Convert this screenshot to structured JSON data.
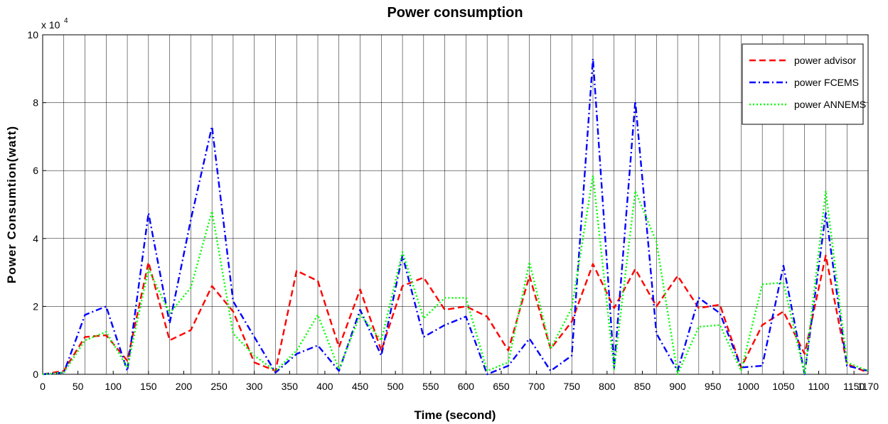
{
  "chart_data": {
    "type": "line",
    "title": "Power consumption",
    "xlabel": "Time (second)",
    "ylabel": "Power Consumtion(watt)",
    "y_exponent_label": "x 10",
    "y_exponent_power": "4",
    "xlim": [
      0,
      1170
    ],
    "ylim": [
      0,
      10
    ],
    "x_ticks": [
      "0",
      "50",
      "100",
      "150",
      "200",
      "250",
      "300",
      "350",
      "400",
      "450",
      "500",
      "550",
      "600",
      "650",
      "700",
      "750",
      "800",
      "850",
      "900",
      "950",
      "1000",
      "1050",
      "1100",
      "1150",
      "1170"
    ],
    "y_ticks": [
      "0",
      "2",
      "4",
      "6",
      "8",
      "10"
    ],
    "grid": true,
    "legend_position": "top-right",
    "x": [
      0,
      30,
      60,
      90,
      120,
      150,
      180,
      210,
      240,
      270,
      300,
      330,
      360,
      390,
      420,
      450,
      480,
      510,
      540,
      570,
      600,
      630,
      660,
      690,
      720,
      750,
      780,
      810,
      840,
      870,
      900,
      930,
      960,
      990,
      1020,
      1050,
      1080,
      1110,
      1140,
      1170
    ],
    "series": [
      {
        "name": "power advisor",
        "color": "#ff0000",
        "dash": "dashed",
        "values": [
          0,
          0.1,
          1.1,
          1.15,
          0.4,
          3.3,
          1.0,
          1.3,
          2.6,
          1.85,
          0.35,
          0.1,
          3.05,
          2.75,
          0.8,
          2.5,
          0.7,
          2.6,
          2.85,
          1.9,
          2.0,
          1.7,
          0.7,
          2.9,
          0.75,
          1.55,
          3.25,
          1.95,
          3.1,
          2.0,
          2.9,
          1.95,
          2.05,
          0.2,
          1.45,
          1.85,
          0.6,
          3.5,
          0.3,
          0.05
        ]
      },
      {
        "name": "power FCEMS",
        "color": "#0000ff",
        "dash": "dash-dot",
        "values": [
          0,
          0.05,
          1.75,
          2.0,
          0.1,
          4.75,
          1.5,
          4.55,
          7.3,
          2.15,
          1.1,
          0.05,
          0.6,
          0.85,
          0.1,
          1.9,
          0.55,
          3.5,
          1.1,
          1.45,
          1.7,
          0.0,
          0.25,
          1.05,
          0.1,
          0.55,
          9.3,
          0.2,
          8.05,
          1.2,
          0.1,
          2.25,
          1.8,
          0.2,
          0.25,
          3.2,
          0.0,
          4.75,
          0.25,
          0.1
        ]
      },
      {
        "name": "power ANNEMS",
        "color": "#00ff00",
        "dash": "dotted",
        "values": [
          0,
          0.05,
          1.0,
          1.25,
          0.2,
          3.1,
          1.8,
          2.55,
          4.8,
          1.2,
          0.55,
          0.1,
          0.7,
          1.75,
          0.15,
          1.75,
          1.0,
          3.6,
          1.65,
          2.25,
          2.25,
          0.1,
          0.35,
          3.3,
          0.75,
          1.95,
          5.85,
          0.15,
          5.4,
          3.9,
          0.0,
          1.4,
          1.45,
          0.1,
          2.65,
          2.7,
          0.0,
          5.4,
          0.35,
          0.1
        ]
      }
    ]
  }
}
